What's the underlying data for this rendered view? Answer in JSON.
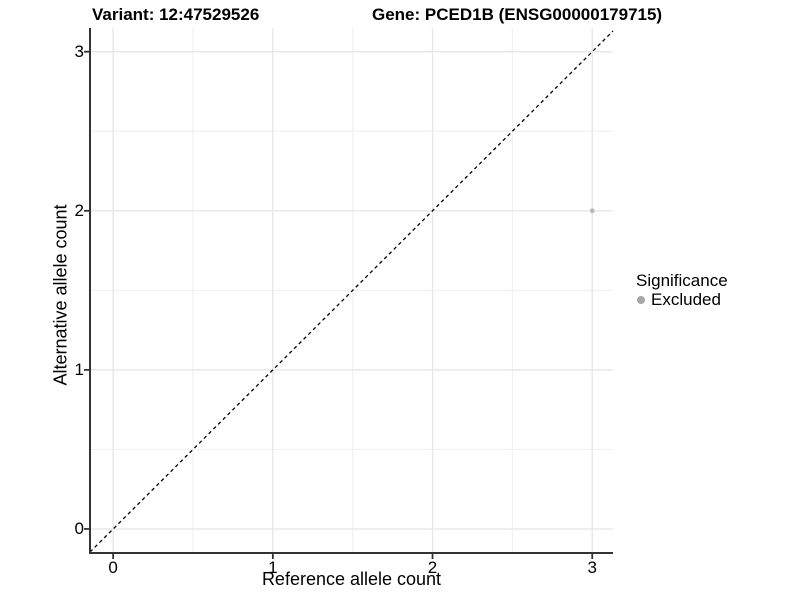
{
  "chart_data": {
    "type": "scatter",
    "titles": {
      "variant": "Variant: 12:47529526",
      "gene": "Gene: PCED1B (ENSG00000179715)"
    },
    "xlabel": "Reference allele count",
    "ylabel": "Alternative allele count",
    "x_ticks": [
      0,
      1,
      2,
      3
    ],
    "y_ticks": [
      0,
      1,
      2,
      3
    ],
    "x_minor": [
      0.5,
      1.5,
      2.5
    ],
    "y_minor": [
      0.5,
      1.5,
      2.5
    ],
    "xlim": [
      -0.145,
      3.13
    ],
    "ylim": [
      -0.151,
      3.149
    ],
    "grid": true,
    "identity_line": {
      "style": "dashed",
      "equation": "y = x",
      "color": "#000000"
    },
    "series": [
      {
        "name": "Excluded",
        "color": "#b9b9b9",
        "points": [
          {
            "x": 3,
            "y": 2
          }
        ]
      }
    ],
    "legend": {
      "title": "Significance",
      "position": "right",
      "items": [
        {
          "label": "Excluded",
          "color": "#a6a6a6"
        }
      ]
    },
    "colors": {
      "grid_major": "#e7e7e7",
      "grid_minor": "#f1f1f1",
      "axis_line": "#333333",
      "dashed_line": "#000000",
      "background": "#ffffff",
      "text": "#000000"
    }
  }
}
